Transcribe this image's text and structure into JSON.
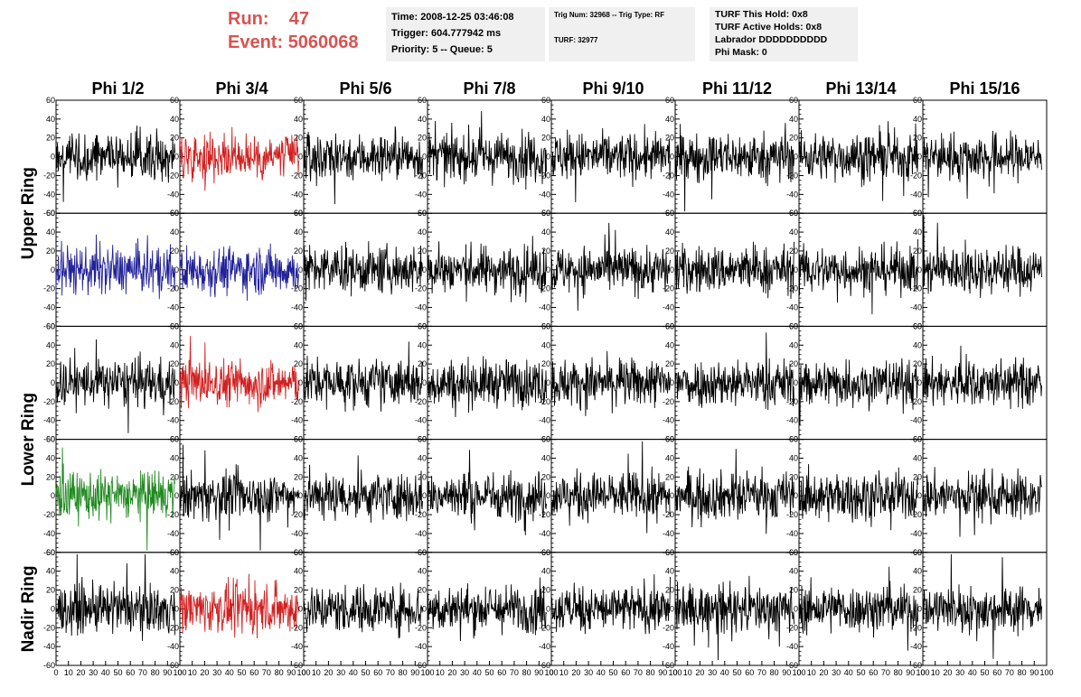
{
  "header": {
    "run_label": "Run:",
    "run_value": "47",
    "event_label": "Event:",
    "event_value": "5060068",
    "header_color": "#d9534f",
    "info1": [
      "Time: 2008-12-25 03:46:08",
      "Trigger: 604.777942 ms",
      "Priority: 5 -- Queue: 5"
    ],
    "info2": [
      "Trig Num: 32968 -- Trig Type: RF",
      "TURF: 32977"
    ],
    "info3": [
      "TURF This Hold: 0x8",
      "TURF Active Holds: 0x8",
      "Labrador DDDDDDDDDD",
      "Phi Mask: 0"
    ]
  },
  "chart_data": {
    "type": "line",
    "columns": [
      "Phi 1/2",
      "Phi 3/4",
      "Phi 5/6",
      "Phi 7/8",
      "Phi 9/10",
      "Phi 11/12",
      "Phi 13/14",
      "Phi 15/16"
    ],
    "row_groups": [
      {
        "label": "Upper Ring",
        "rows": [
          0,
          1
        ]
      },
      {
        "label": "Lower Ring",
        "rows": [
          2,
          3
        ]
      },
      {
        "label": "Nadir Ring",
        "rows": [
          4
        ]
      }
    ],
    "xlim": [
      0,
      100
    ],
    "ylim": [
      -60,
      60
    ],
    "x_ticks": [
      "0",
      "10",
      "20",
      "30",
      "40",
      "50",
      "60",
      "70",
      "80",
      "90",
      "100"
    ],
    "y_ticks": [
      "60",
      "40",
      "20",
      "0",
      "-20",
      "-40",
      "-60"
    ],
    "trace_x_range": [
      0,
      96
    ],
    "trace_amplitude": 15,
    "colors": {
      "default": "#000000",
      "red": "#d22020",
      "blue": "#22229a",
      "green": "#208a20"
    },
    "highlighted_traces": [
      {
        "row": 0,
        "col": 1,
        "color": "red"
      },
      {
        "row": 1,
        "col": 0,
        "color": "blue"
      },
      {
        "row": 1,
        "col": 1,
        "color": "blue"
      },
      {
        "row": 2,
        "col": 1,
        "color": "red"
      },
      {
        "row": 3,
        "col": 0,
        "color": "green"
      },
      {
        "row": 4,
        "col": 1,
        "color": "red"
      }
    ]
  }
}
